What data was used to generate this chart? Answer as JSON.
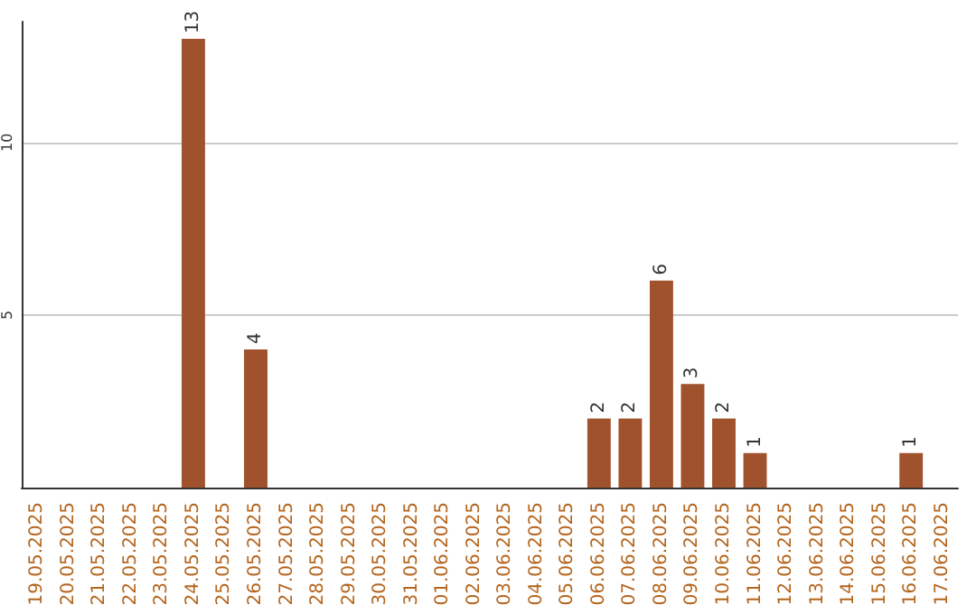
{
  "chart_data": {
    "type": "bar",
    "categories": [
      "19.05.2025",
      "20.05.2025",
      "21.05.2025",
      "22.05.2025",
      "23.05.2025",
      "24.05.2025",
      "25.05.2025",
      "26.05.2025",
      "27.05.2025",
      "28.05.2025",
      "29.05.2025",
      "30.05.2025",
      "31.05.2025",
      "01.06.2025",
      "02.06.2025",
      "03.06.2025",
      "04.06.2025",
      "05.06.2025",
      "06.06.2025",
      "07.06.2025",
      "08.06.2025",
      "09.06.2025",
      "10.06.2025",
      "11.06.2025",
      "12.06.2025",
      "13.06.2025",
      "14.06.2025",
      "15.06.2025",
      "16.06.2025",
      "17.06.2025"
    ],
    "values": [
      0,
      0,
      0,
      0,
      0,
      13,
      0,
      4,
      0,
      0,
      0,
      0,
      0,
      0,
      0,
      0,
      0,
      0,
      2,
      2,
      6,
      3,
      2,
      1,
      0,
      0,
      0,
      0,
      1,
      0
    ],
    "value_labels": [
      null,
      null,
      null,
      null,
      null,
      "13",
      null,
      "4",
      null,
      null,
      null,
      null,
      null,
      null,
      null,
      null,
      null,
      null,
      "2",
      "2",
      "6",
      "3",
      "2",
      "1",
      null,
      null,
      null,
      null,
      "1",
      null
    ],
    "color": "#a0522d",
    "ylim": [
      0,
      13.5
    ],
    "yticks": [
      5,
      10
    ],
    "grid": "y"
  }
}
